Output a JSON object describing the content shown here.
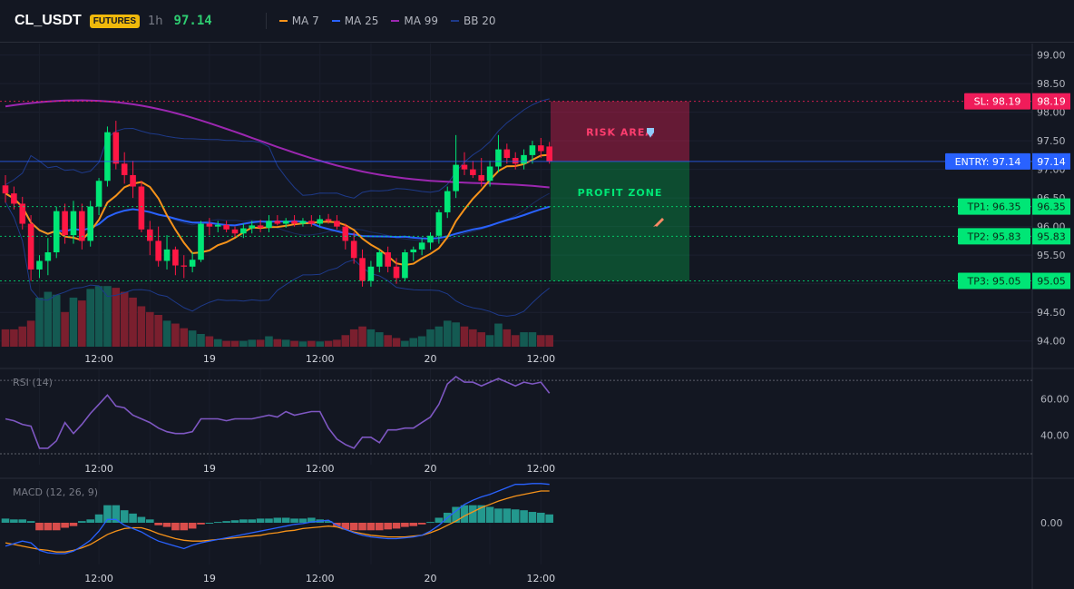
{
  "header": {
    "symbol": "CL_USDT",
    "market_badge": "FUTURES",
    "timeframe": "1h",
    "last_price": "97.14",
    "legend": [
      {
        "label": "MA 7",
        "color": "#f7931a"
      },
      {
        "label": "MA 25",
        "color": "#2962ff"
      },
      {
        "label": "MA 99",
        "color": "#9c27b0"
      },
      {
        "label": "BB 20",
        "color": "#1e3a8a"
      }
    ]
  },
  "colors": {
    "background": "#131722",
    "bull": "#26a69a",
    "bull_candle": "#00e676",
    "bear": "#ff1744",
    "entry": "#2962ff",
    "stop": "#ff1f5a",
    "target": "#00e676"
  },
  "chart_data": [
    {
      "type": "candlestick",
      "pane": "price",
      "x_ticks": [
        "12:00",
        "19",
        "12:00",
        "20",
        "12:00"
      ],
      "ylim": [
        93.9,
        99.2
      ],
      "y_ticks": [
        "94.00",
        "94.50",
        "95.00",
        "95.50",
        "96.00",
        "96.50",
        "97.00",
        "97.50",
        "98.00",
        "98.50",
        "99.00"
      ],
      "ohlc": [
        [
          96.72,
          96.9,
          96.42,
          96.58
        ],
        [
          96.58,
          96.7,
          96.3,
          96.4
        ],
        [
          96.4,
          96.52,
          95.95,
          96.05
        ],
        [
          96.05,
          96.2,
          95.05,
          95.25
        ],
        [
          95.25,
          95.5,
          95.1,
          95.4
        ],
        [
          95.4,
          95.8,
          95.15,
          95.55
        ],
        [
          95.55,
          96.35,
          95.45,
          96.27
        ],
        [
          96.27,
          96.4,
          95.7,
          95.85
        ],
        [
          95.85,
          96.45,
          95.7,
          96.27
        ],
        [
          96.27,
          96.4,
          95.6,
          95.75
        ],
        [
          95.75,
          96.45,
          95.65,
          96.35
        ],
        [
          96.35,
          96.85,
          96.2,
          96.8
        ],
        [
          96.8,
          97.75,
          96.7,
          97.65
        ],
        [
          97.65,
          97.85,
          97.0,
          97.1
        ],
        [
          97.1,
          97.3,
          96.75,
          96.9
        ],
        [
          96.9,
          97.15,
          96.5,
          96.7
        ],
        [
          96.7,
          96.8,
          95.9,
          95.95
        ],
        [
          95.95,
          96.1,
          95.5,
          95.75
        ],
        [
          95.75,
          96.0,
          95.3,
          95.4
        ],
        [
          95.4,
          95.85,
          95.25,
          95.6
        ],
        [
          95.6,
          95.65,
          95.15,
          95.32
        ],
        [
          95.32,
          95.5,
          95.1,
          95.3
        ],
        [
          95.3,
          95.55,
          95.2,
          95.42
        ],
        [
          95.42,
          96.1,
          95.38,
          96.05
        ],
        [
          96.05,
          96.15,
          95.85,
          96.0
        ],
        [
          96.0,
          96.1,
          95.9,
          96.03
        ],
        [
          96.03,
          96.1,
          95.9,
          95.95
        ],
        [
          95.95,
          96.0,
          95.82,
          95.88
        ],
        [
          95.88,
          96.05,
          95.8,
          95.97
        ],
        [
          95.97,
          96.1,
          95.88,
          96.02
        ],
        [
          96.02,
          96.12,
          95.9,
          95.98
        ],
        [
          95.98,
          96.2,
          95.9,
          96.1
        ],
        [
          96.1,
          96.2,
          96.02,
          96.05
        ],
        [
          96.05,
          96.15,
          95.98,
          96.1
        ],
        [
          96.1,
          96.2,
          96.0,
          96.05
        ],
        [
          96.05,
          96.15,
          96.0,
          96.1
        ],
        [
          96.1,
          96.2,
          96.0,
          96.05
        ],
        [
          96.05,
          96.2,
          96.0,
          96.13
        ],
        [
          96.13,
          96.22,
          96.05,
          96.1
        ],
        [
          96.1,
          96.2,
          95.95,
          96.0
        ],
        [
          96.0,
          96.05,
          95.6,
          95.75
        ],
        [
          95.75,
          95.9,
          95.35,
          95.45
        ],
        [
          95.45,
          95.6,
          94.95,
          95.05
        ],
        [
          95.05,
          95.4,
          94.95,
          95.3
        ],
        [
          95.3,
          95.6,
          95.2,
          95.55
        ],
        [
          95.55,
          95.65,
          95.2,
          95.3
        ],
        [
          95.3,
          95.45,
          95.0,
          95.1
        ],
        [
          95.1,
          95.6,
          95.05,
          95.55
        ],
        [
          95.55,
          95.65,
          95.4,
          95.6
        ],
        [
          95.6,
          95.8,
          95.5,
          95.72
        ],
        [
          95.72,
          95.9,
          95.6,
          95.84
        ],
        [
          95.84,
          96.3,
          95.7,
          96.25
        ],
        [
          96.25,
          96.7,
          96.15,
          96.62
        ],
        [
          96.62,
          97.6,
          96.5,
          97.08
        ],
        [
          97.08,
          97.3,
          96.9,
          97.0
        ],
        [
          97.0,
          97.15,
          96.85,
          96.9
        ],
        [
          96.9,
          97.2,
          96.7,
          96.8
        ],
        [
          96.8,
          97.15,
          96.7,
          97.05
        ],
        [
          97.05,
          97.6,
          96.95,
          97.35
        ],
        [
          97.35,
          97.45,
          97.1,
          97.2
        ],
        [
          97.2,
          97.3,
          97.0,
          97.1
        ],
        [
          97.1,
          97.35,
          97.0,
          97.25
        ],
        [
          97.25,
          97.5,
          97.1,
          97.42
        ],
        [
          97.42,
          97.55,
          97.2,
          97.32
        ],
        [
          97.4,
          97.48,
          97.1,
          97.14
        ]
      ],
      "volume": [
        3,
        3,
        3.5,
        4.5,
        8.5,
        9.5,
        9,
        6,
        8.5,
        8,
        10,
        10.5,
        10.5,
        10.2,
        9.5,
        8.5,
        7,
        6,
        5.5,
        4.5,
        4,
        3.2,
        2.8,
        2.2,
        1.8,
        1.3,
        1,
        1,
        1,
        1.2,
        1.2,
        1.8,
        1.3,
        1.2,
        1,
        0.9,
        1,
        0.9,
        1,
        1.2,
        2,
        3,
        3.5,
        3,
        2.5,
        2,
        1.5,
        1,
        1.5,
        1.8,
        3,
        3.5,
        4.5,
        4.2,
        3.5,
        3,
        2.5,
        2,
        4,
        3,
        2,
        2.5,
        2.5,
        2,
        2
      ],
      "levels": [
        {
          "label": "SL: 98.19",
          "price": 98.19,
          "tag": "98.19"
        },
        {
          "label": "ENTRY: 97.14",
          "price": 97.14,
          "tag": "97.14"
        },
        {
          "label": "TP1: 96.35",
          "price": 96.35,
          "tag": "96.35"
        },
        {
          "label": "TP2: 95.83",
          "price": 95.83,
          "tag": "95.83"
        },
        {
          "label": "TP3: 95.05",
          "price": 95.05,
          "tag": "95.05"
        }
      ],
      "zones": {
        "risk_label": "RISK AREA",
        "profit_label": "PROFIT ZONE"
      }
    },
    {
      "type": "line",
      "pane": "rsi",
      "title": "RSI (14)",
      "ylim": [
        28,
        74
      ],
      "y_ticks": [
        "60.00",
        "40.00"
      ],
      "bands": [
        70,
        30
      ],
      "series": [
        {
          "values": [
            49,
            48,
            46,
            45,
            33,
            33,
            37,
            47,
            41,
            46,
            52,
            57,
            62,
            56,
            55,
            51,
            49,
            47,
            44,
            42,
            41,
            41,
            42,
            49,
            49,
            49,
            48,
            49,
            49,
            49,
            50,
            51,
            50,
            53,
            51,
            52,
            53,
            53,
            44,
            38,
            35,
            33,
            39,
            39,
            36,
            43,
            43,
            44,
            44,
            47,
            50,
            57,
            68,
            72,
            69,
            69,
            67,
            69,
            71,
            69,
            67,
            69,
            68,
            69,
            63
          ]
        }
      ]
    },
    {
      "type": "bar",
      "pane": "macd",
      "title": "MACD (12, 26, 9)",
      "ylim": [
        -0.5,
        0.5
      ],
      "y_ticks": [
        "0.00"
      ],
      "histogram": [
        0.05,
        0.04,
        0.04,
        0.02,
        -0.09,
        -0.09,
        -0.09,
        -0.06,
        -0.04,
        0.02,
        0.04,
        0.1,
        0.21,
        0.21,
        0.15,
        0.11,
        0.07,
        0.04,
        -0.03,
        -0.05,
        -0.09,
        -0.09,
        -0.07,
        -0.02,
        0,
        0.01,
        0.02,
        0.03,
        0.04,
        0.04,
        0.05,
        0.05,
        0.06,
        0.06,
        0.05,
        0.05,
        0.06,
        0.04,
        0.02,
        -0.04,
        -0.08,
        -0.09,
        -0.09,
        -0.09,
        -0.09,
        -0.08,
        -0.07,
        -0.05,
        -0.04,
        -0.02,
        0.01,
        0.06,
        0.12,
        0.19,
        0.21,
        0.21,
        0.21,
        0.19,
        0.17,
        0.17,
        0.16,
        0.15,
        0.13,
        0.12,
        0.1
      ],
      "series": [
        {
          "values": [
            -0.28,
            -0.25,
            -0.22,
            -0.24,
            -0.33,
            -0.36,
            -0.37,
            -0.37,
            -0.34,
            -0.28,
            -0.21,
            -0.1,
            0.04,
            0.04,
            -0.03,
            -0.07,
            -0.11,
            -0.17,
            -0.22,
            -0.25,
            -0.28,
            -0.31,
            -0.27,
            -0.24,
            -0.22,
            -0.2,
            -0.18,
            -0.16,
            -0.14,
            -0.12,
            -0.1,
            -0.08,
            -0.06,
            -0.04,
            -0.02,
            -0.01,
            0.01,
            0.02,
            0.03,
            -0.03,
            -0.08,
            -0.12,
            -0.15,
            -0.17,
            -0.18,
            -0.19,
            -0.19,
            -0.18,
            -0.17,
            -0.15,
            -0.1,
            -0.03,
            0.06,
            0.14,
            0.22,
            0.27,
            0.31,
            0.34,
            0.38,
            0.42,
            0.46,
            0.46,
            0.47,
            0.47,
            0.46
          ]
        },
        {
          "values": [
            -0.24,
            -0.26,
            -0.28,
            -0.3,
            -0.32,
            -0.33,
            -0.35,
            -0.35,
            -0.33,
            -0.3,
            -0.26,
            -0.2,
            -0.14,
            -0.1,
            -0.07,
            -0.06,
            -0.06,
            -0.09,
            -0.13,
            -0.16,
            -0.19,
            -0.21,
            -0.22,
            -0.22,
            -0.21,
            -0.2,
            -0.19,
            -0.18,
            -0.17,
            -0.16,
            -0.15,
            -0.13,
            -0.12,
            -0.1,
            -0.09,
            -0.07,
            -0.06,
            -0.05,
            -0.04,
            -0.05,
            -0.08,
            -0.11,
            -0.13,
            -0.15,
            -0.16,
            -0.17,
            -0.17,
            -0.17,
            -0.16,
            -0.15,
            -0.12,
            -0.08,
            -0.03,
            0.02,
            0.08,
            0.13,
            0.18,
            0.22,
            0.26,
            0.29,
            0.32,
            0.34,
            0.36,
            0.38,
            0.38
          ]
        }
      ]
    }
  ]
}
